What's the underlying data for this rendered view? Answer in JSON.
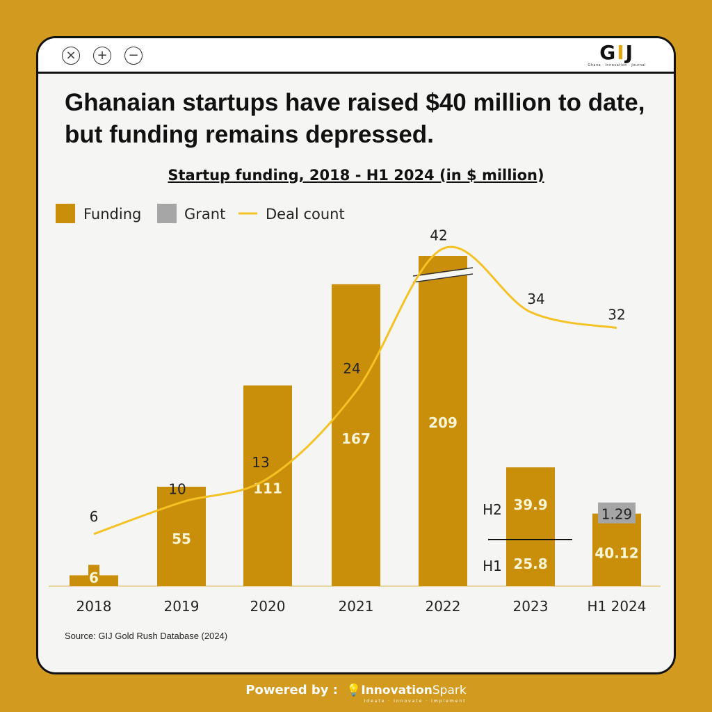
{
  "window": {
    "close": "×",
    "zoom_in": "+",
    "zoom_out": "−"
  },
  "logo": {
    "text_left": "G",
    "text_mid": "I",
    "text_right": "J",
    "tagline": "Ghana · Innovation · Journal"
  },
  "title": "Ghanaian startups have raised $40 million to date, but funding remains depressed.",
  "colors": {
    "funding": "#C98F0B",
    "grant": "#A6A6A6",
    "deal_count": "#F5C225",
    "background": "#D29A1F"
  },
  "chart_data": {
    "type": "bar",
    "title": "Startup funding, 2018 - H1 2024 (in $ million)",
    "legend": [
      "Funding",
      "Grant",
      "Deal count"
    ],
    "legend_placement": "top-left",
    "categories": [
      "2018",
      "2019",
      "2020",
      "2021",
      "2022",
      "2023",
      "H1 2024"
    ],
    "series": [
      {
        "name": "Funding",
        "values": [
          6,
          55,
          111,
          167,
          209,
          65.7,
          40.12
        ],
        "labels": [
          "6",
          "55",
          "111",
          "167",
          "209",
          "",
          "40.12"
        ]
      },
      {
        "name": "Grant",
        "values": [
          0,
          0,
          0,
          0,
          0,
          0,
          1.29
        ],
        "labels": [
          "",
          "",
          "",
          "",
          "",
          "",
          "1.29"
        ]
      },
      {
        "name": "Deal count",
        "type": "line",
        "values": [
          6,
          10,
          13,
          24,
          42,
          34,
          32
        ]
      }
    ],
    "split_2023": {
      "H1": {
        "label": "H1",
        "value": "25.8"
      },
      "H2": {
        "label": "H2",
        "value": "39.9"
      }
    },
    "axis_break": "2022",
    "xlabel": "",
    "ylabel": ""
  },
  "source": "Source: GIJ Gold Rush Database (2024)",
  "footer": {
    "powered": "Powered by :",
    "brand_bold": "Innovation",
    "brand_light": "Spark",
    "brand_tag": "Ideate · Innovate · Implement"
  }
}
